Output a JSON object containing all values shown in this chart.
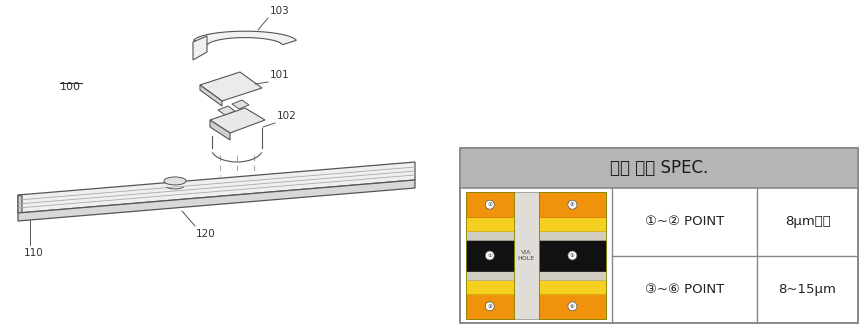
{
  "bg_color": "#ffffff",
  "table_title": "도금 두께 SPEC.",
  "table_title_bg": "#b8b8b8",
  "table_bg": "#ffffff",
  "table_border": "#888888",
  "row1_label": "①~② POINT",
  "row1_value": "8μm이상",
  "row2_label": "③~⑥ POINT",
  "row2_value": "8~15μm",
  "label_100": "100",
  "label_101": "101",
  "label_102": "102",
  "label_103": "103",
  "label_110": "110",
  "label_120": "120",
  "orange_color": "#f0920a",
  "yellow_color": "#f5d020",
  "black_color": "#111111",
  "gray_light": "#e8e8e8",
  "gray_mid": "#cccccc",
  "line_color": "#555555",
  "text_color": "#333333",
  "dashed_color": "#aaaaaa"
}
